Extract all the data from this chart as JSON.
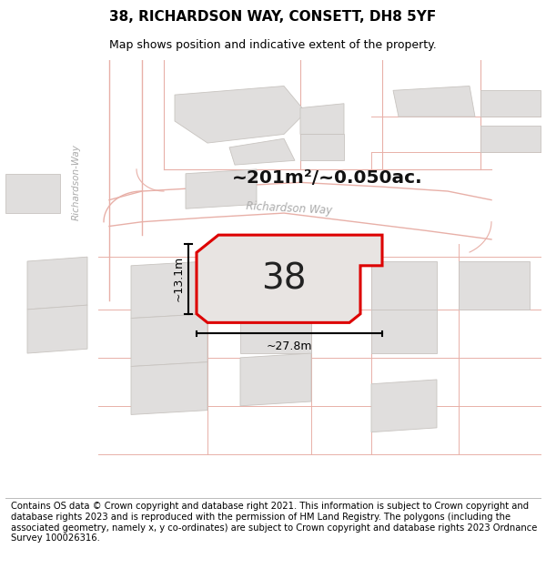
{
  "title": "38, RICHARDSON WAY, CONSETT, DH8 5YF",
  "subtitle": "Map shows position and indicative extent of the property.",
  "footer": "Contains OS data © Crown copyright and database right 2021. This information is subject to Crown copyright and database rights 2023 and is reproduced with the permission of HM Land Registry. The polygons (including the associated geometry, namely x, y co-ordinates) are subject to Crown copyright and database rights 2023 Ordnance Survey 100026316.",
  "area_label": "~201m²/~0.050ac.",
  "number_label": "38",
  "width_label": "~27.8m",
  "height_label": "~13.1m",
  "map_bg": "#ffffff",
  "road_line_color": "#e8b0a8",
  "building_fill": "#e0dedd",
  "building_edge": "#c8c4c0",
  "property_fill": "#e8e4e2",
  "highlight_edge": "#dd0000",
  "street_label": "Richardson Way",
  "street_label2": "Richardson-Way",
  "title_fontsize": 11,
  "subtitle_fontsize": 9,
  "footer_fontsize": 7.2,
  "number_fontsize": 28
}
